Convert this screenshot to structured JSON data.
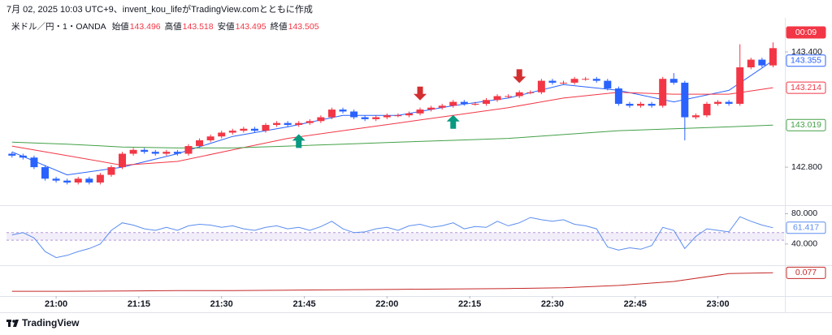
{
  "header": {
    "caption": "7月 02, 2025 10:03 UTC+9、invent_kou_lifeがTradingView.comとともに作成"
  },
  "footer": {
    "brand": "TradingView"
  },
  "chart_data": [
    {
      "type": "candlestick",
      "title": "米ドル／円・1・OANDA",
      "legend": [
        {
          "label": "始値",
          "value": 143.496
        },
        {
          "label": "高値",
          "value": 143.518
        },
        {
          "label": "安値",
          "value": 143.495
        },
        {
          "label": "終値",
          "value": 143.505
        }
      ],
      "countdown": "00:09",
      "up_color": "#f23645",
      "down_color": "#2962ff",
      "xlim": [
        1251,
        1392
      ],
      "xticks": [
        {
          "value": 1260,
          "label": "21:00"
        },
        {
          "value": 1275,
          "label": "21:15"
        },
        {
          "value": 1290,
          "label": "21:30"
        },
        {
          "value": 1305,
          "label": "21:45"
        },
        {
          "value": 1320,
          "label": "22:00"
        },
        {
          "value": 1335,
          "label": "22:15"
        },
        {
          "value": 1350,
          "label": "22:30"
        },
        {
          "value": 1365,
          "label": "22:45"
        },
        {
          "value": 1380,
          "label": "23:00"
        }
      ],
      "ylim": [
        142.606,
        143.544
      ],
      "yticks": [
        {
          "value": 142.8,
          "label": "142.800"
        },
        {
          "value": 143.4,
          "label": "143.400"
        }
      ],
      "x": [
        1252,
        1254,
        1256,
        1258,
        1260,
        1262,
        1264,
        1266,
        1268,
        1270,
        1272,
        1274,
        1276,
        1278,
        1280,
        1282,
        1284,
        1286,
        1288,
        1290,
        1292,
        1294,
        1296,
        1298,
        1300,
        1302,
        1304,
        1306,
        1308,
        1310,
        1312,
        1314,
        1316,
        1318,
        1320,
        1322,
        1324,
        1326,
        1328,
        1330,
        1332,
        1334,
        1336,
        1338,
        1340,
        1342,
        1344,
        1346,
        1348,
        1350,
        1352,
        1354,
        1356,
        1358,
        1360,
        1362,
        1364,
        1366,
        1368,
        1370,
        1372,
        1374,
        1376,
        1378,
        1380,
        1382,
        1384,
        1386,
        1388,
        1390
      ],
      "ohlc": [
        [
          142.87,
          142.88,
          142.85,
          142.86
        ],
        [
          142.86,
          142.87,
          142.84,
          142.85
        ],
        [
          142.85,
          142.86,
          142.79,
          142.8
        ],
        [
          142.8,
          142.81,
          142.73,
          142.74
        ],
        [
          142.74,
          142.75,
          142.72,
          142.73
        ],
        [
          142.73,
          142.74,
          142.71,
          142.72
        ],
        [
          142.72,
          142.75,
          142.71,
          142.74
        ],
        [
          142.74,
          142.75,
          142.71,
          142.72
        ],
        [
          142.72,
          142.77,
          142.71,
          142.76
        ],
        [
          142.76,
          142.81,
          142.75,
          142.8
        ],
        [
          142.8,
          142.88,
          142.79,
          142.87
        ],
        [
          142.87,
          142.9,
          142.86,
          142.89
        ],
        [
          142.89,
          142.9,
          142.87,
          142.88
        ],
        [
          142.88,
          142.89,
          142.86,
          142.87
        ],
        [
          142.87,
          142.89,
          142.86,
          142.88
        ],
        [
          142.88,
          142.89,
          142.86,
          142.87
        ],
        [
          142.87,
          142.92,
          142.86,
          142.91
        ],
        [
          142.91,
          142.95,
          142.9,
          142.94
        ],
        [
          142.94,
          142.97,
          142.93,
          142.96
        ],
        [
          142.96,
          142.99,
          142.95,
          142.98
        ],
        [
          142.98,
          143.0,
          142.97,
          142.99
        ],
        [
          142.99,
          143.01,
          142.98,
          143.0
        ],
        [
          143.0,
          143.01,
          142.98,
          142.99
        ],
        [
          142.99,
          143.03,
          142.98,
          143.02
        ],
        [
          143.02,
          143.04,
          143.01,
          143.03
        ],
        [
          143.03,
          143.04,
          143.01,
          143.02
        ],
        [
          143.02,
          143.04,
          143.01,
          143.03
        ],
        [
          143.03,
          143.05,
          143.02,
          143.04
        ],
        [
          143.04,
          143.07,
          143.03,
          143.06
        ],
        [
          143.06,
          143.11,
          143.05,
          143.1
        ],
        [
          143.1,
          143.11,
          143.08,
          143.09
        ],
        [
          143.09,
          143.1,
          143.05,
          143.06
        ],
        [
          143.06,
          143.07,
          143.04,
          143.05
        ],
        [
          143.05,
          143.07,
          143.04,
          143.06
        ],
        [
          143.06,
          143.08,
          143.05,
          143.07
        ],
        [
          143.07,
          143.08,
          143.06,
          143.07
        ],
        [
          143.07,
          143.09,
          143.06,
          143.08
        ],
        [
          143.08,
          143.11,
          143.07,
          143.1
        ],
        [
          143.1,
          143.12,
          143.09,
          143.11
        ],
        [
          143.11,
          143.13,
          143.1,
          143.12
        ],
        [
          143.12,
          143.15,
          143.11,
          143.14
        ],
        [
          143.14,
          143.15,
          143.12,
          143.13
        ],
        [
          143.13,
          143.14,
          143.12,
          143.13
        ],
        [
          143.13,
          143.16,
          143.12,
          143.15
        ],
        [
          143.15,
          143.18,
          143.14,
          143.17
        ],
        [
          143.17,
          143.18,
          143.16,
          143.17
        ],
        [
          143.17,
          143.2,
          143.16,
          143.19
        ],
        [
          143.19,
          143.2,
          143.18,
          143.19
        ],
        [
          143.19,
          143.26,
          143.18,
          143.25
        ],
        [
          143.25,
          143.26,
          143.23,
          143.24
        ],
        [
          143.24,
          143.25,
          143.23,
          143.24
        ],
        [
          143.24,
          143.27,
          143.23,
          143.26
        ],
        [
          143.26,
          143.27,
          143.25,
          143.26
        ],
        [
          143.26,
          143.27,
          143.24,
          143.25
        ],
        [
          143.25,
          143.26,
          143.2,
          143.21
        ],
        [
          143.21,
          143.22,
          143.12,
          143.13
        ],
        [
          143.13,
          143.14,
          143.11,
          143.12
        ],
        [
          143.12,
          143.14,
          143.11,
          143.13
        ],
        [
          143.13,
          143.14,
          143.11,
          143.12
        ],
        [
          143.12,
          143.27,
          143.11,
          143.26
        ],
        [
          143.26,
          143.29,
          143.23,
          143.24
        ],
        [
          143.24,
          143.25,
          142.94,
          143.06
        ],
        [
          143.06,
          143.08,
          143.05,
          143.07
        ],
        [
          143.07,
          143.14,
          143.06,
          143.13
        ],
        [
          143.13,
          143.15,
          143.12,
          143.14
        ],
        [
          143.14,
          143.15,
          143.12,
          143.13
        ],
        [
          143.13,
          143.44,
          143.12,
          143.32
        ],
        [
          143.32,
          143.37,
          143.31,
          143.36
        ],
        [
          143.36,
          143.37,
          143.32,
          143.33
        ],
        [
          143.33,
          143.45,
          143.32,
          143.42
        ]
      ],
      "series": [
        {
          "color": "#2962ff",
          "x": [
            1252,
            1262,
            1272,
            1282,
            1292,
            1302,
            1312,
            1322,
            1332,
            1342,
            1352,
            1362,
            1372,
            1382,
            1390
          ],
          "values": [
            142.88,
            142.76,
            142.8,
            142.87,
            142.96,
            143.01,
            143.07,
            143.07,
            143.12,
            143.16,
            143.23,
            143.2,
            143.14,
            143.2,
            143.355
          ]
        },
        {
          "color": "#f23645",
          "x": [
            1252,
            1262,
            1272,
            1282,
            1292,
            1302,
            1312,
            1322,
            1332,
            1342,
            1352,
            1362,
            1372,
            1382,
            1390
          ],
          "values": [
            142.91,
            142.86,
            142.81,
            142.83,
            142.89,
            142.95,
            142.99,
            143.03,
            143.07,
            143.11,
            143.16,
            143.19,
            143.18,
            143.18,
            143.214
          ]
        },
        {
          "color": "#43a047",
          "x": [
            1252,
            1262,
            1272,
            1282,
            1292,
            1302,
            1312,
            1322,
            1332,
            1342,
            1352,
            1362,
            1372,
            1382,
            1390
          ],
          "values": [
            142.93,
            142.92,
            142.905,
            142.9,
            142.9,
            142.91,
            142.92,
            142.93,
            142.94,
            142.95,
            142.97,
            142.99,
            143.0,
            143.01,
            143.019
          ]
        }
      ],
      "sell_signals": [
        1326,
        1344
      ],
      "sell_color": "#d32f2f",
      "buy_signals": [
        1304,
        1332
      ],
      "buy_color": "#089981"
    },
    {
      "type": "line",
      "color": "#5b8def",
      "ylim": [
        13,
        88
      ],
      "yticks": [
        {
          "value": 40,
          "label": "40.000"
        },
        {
          "value": 80,
          "label": "80.000"
        }
      ],
      "bands": [
        45,
        55
      ],
      "band_color": "#7e57c2",
      "x": [
        1252,
        1254,
        1256,
        1258,
        1260,
        1262,
        1264,
        1266,
        1268,
        1270,
        1272,
        1274,
        1276,
        1278,
        1280,
        1282,
        1284,
        1286,
        1288,
        1290,
        1292,
        1294,
        1296,
        1298,
        1300,
        1302,
        1304,
        1306,
        1308,
        1310,
        1312,
        1314,
        1316,
        1318,
        1320,
        1322,
        1324,
        1326,
        1328,
        1330,
        1332,
        1334,
        1336,
        1338,
        1340,
        1342,
        1344,
        1346,
        1348,
        1350,
        1352,
        1354,
        1356,
        1358,
        1360,
        1362,
        1364,
        1366,
        1368,
        1370,
        1372,
        1374,
        1376,
        1378,
        1380,
        1382,
        1384,
        1386,
        1388,
        1390
      ],
      "values": [
        52,
        55,
        48,
        30,
        22,
        25,
        30,
        34,
        40,
        58,
        68,
        65,
        60,
        58,
        62,
        58,
        64,
        66,
        65,
        62,
        64,
        60,
        58,
        62,
        64,
        60,
        62,
        58,
        63,
        70,
        60,
        55,
        56,
        60,
        62,
        58,
        64,
        66,
        62,
        64,
        68,
        60,
        63,
        62,
        70,
        64,
        68,
        75,
        72,
        70,
        72,
        66,
        64,
        60,
        36,
        32,
        35,
        33,
        38,
        62,
        58,
        34,
        50,
        60,
        58,
        56,
        76,
        70,
        65,
        61.417
      ]
    },
    {
      "type": "line",
      "color": "#c62828",
      "ylim": [
        0.02,
        0.09
      ],
      "x": [
        1252,
        1262,
        1272,
        1282,
        1292,
        1302,
        1312,
        1322,
        1332,
        1342,
        1352,
        1362,
        1372,
        1382,
        1390
      ],
      "values": [
        0.03,
        0.03,
        0.031,
        0.032,
        0.032,
        0.033,
        0.034,
        0.035,
        0.036,
        0.037,
        0.039,
        0.045,
        0.055,
        0.075,
        0.077
      ]
    }
  ]
}
